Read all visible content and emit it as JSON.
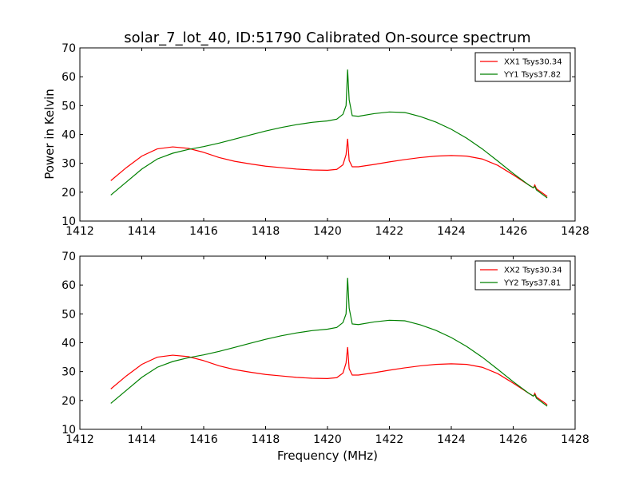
{
  "figure": {
    "title": "solar_7_lot_40, ID:51790 Calibrated On-source spectrum",
    "xlabel": "Frequency (MHz)",
    "ylabel": "Power in Kelvin"
  },
  "colors": {
    "red": "#ff0000",
    "green": "#008000"
  },
  "chart_data": [
    {
      "type": "line",
      "title": "solar_7_lot_40, ID:51790 Calibrated On-source spectrum",
      "xlabel": "",
      "ylabel": "Power in Kelvin",
      "xlim": [
        1412,
        1428
      ],
      "ylim": [
        10,
        70
      ],
      "xticks": [
        1412,
        1414,
        1416,
        1418,
        1420,
        1422,
        1424,
        1426,
        1428
      ],
      "yticks": [
        10,
        20,
        30,
        40,
        50,
        60,
        70
      ],
      "legend": "top-right",
      "grid": false,
      "series": [
        {
          "name": "XX1 Tsys30.34",
          "color": "#ff0000",
          "x": [
            1413.0,
            1413.5,
            1414.0,
            1414.5,
            1415.0,
            1415.5,
            1416.0,
            1416.5,
            1417.0,
            1417.5,
            1418.0,
            1418.5,
            1419.0,
            1419.5,
            1420.0,
            1420.3,
            1420.5,
            1420.6,
            1420.65,
            1420.7,
            1420.8,
            1421.0,
            1421.5,
            1422.0,
            1422.5,
            1423.0,
            1423.5,
            1424.0,
            1424.5,
            1425.0,
            1425.5,
            1426.0,
            1426.5,
            1426.65,
            1426.7,
            1426.75,
            1427.0,
            1427.1
          ],
          "y": [
            24.0,
            28.5,
            32.5,
            35.0,
            35.7,
            35.2,
            33.8,
            32.0,
            30.7,
            29.8,
            29.0,
            28.5,
            28.0,
            27.7,
            27.6,
            27.9,
            29.5,
            33.0,
            38.5,
            31.0,
            28.8,
            28.8,
            29.6,
            30.5,
            31.3,
            32.0,
            32.5,
            32.7,
            32.5,
            31.5,
            29.3,
            26.0,
            22.5,
            21.5,
            22.5,
            21.2,
            19.3,
            18.5
          ]
        },
        {
          "name": "YY1 Tsys37.82",
          "color": "#008000",
          "x": [
            1413.0,
            1413.5,
            1414.0,
            1414.5,
            1415.0,
            1415.5,
            1416.0,
            1416.5,
            1417.0,
            1417.5,
            1418.0,
            1418.5,
            1419.0,
            1419.5,
            1420.0,
            1420.3,
            1420.5,
            1420.6,
            1420.65,
            1420.7,
            1420.8,
            1421.0,
            1421.5,
            1422.0,
            1422.5,
            1423.0,
            1423.5,
            1424.0,
            1424.5,
            1425.0,
            1425.5,
            1426.0,
            1426.5,
            1426.65,
            1426.7,
            1426.75,
            1427.0,
            1427.1
          ],
          "y": [
            19.0,
            23.5,
            28.0,
            31.5,
            33.5,
            34.8,
            35.8,
            37.0,
            38.4,
            39.8,
            41.2,
            42.4,
            43.4,
            44.2,
            44.7,
            45.3,
            47.0,
            50.0,
            62.5,
            52.0,
            46.5,
            46.3,
            47.2,
            47.8,
            47.6,
            46.2,
            44.3,
            41.8,
            38.7,
            35.0,
            30.8,
            26.5,
            22.5,
            21.5,
            22.0,
            20.8,
            18.8,
            18.0
          ]
        }
      ]
    },
    {
      "type": "line",
      "title": "",
      "xlabel": "Frequency (MHz)",
      "ylabel": "",
      "xlim": [
        1412,
        1428
      ],
      "ylim": [
        10,
        70
      ],
      "xticks": [
        1412,
        1414,
        1416,
        1418,
        1420,
        1422,
        1424,
        1426,
        1428
      ],
      "yticks": [
        10,
        20,
        30,
        40,
        50,
        60,
        70
      ],
      "legend": "top-right",
      "grid": false,
      "series": [
        {
          "name": "XX2 Tsys30.34",
          "color": "#ff0000",
          "x": [
            1413.0,
            1413.5,
            1414.0,
            1414.5,
            1415.0,
            1415.5,
            1416.0,
            1416.5,
            1417.0,
            1417.5,
            1418.0,
            1418.5,
            1419.0,
            1419.5,
            1420.0,
            1420.3,
            1420.5,
            1420.6,
            1420.65,
            1420.7,
            1420.8,
            1421.0,
            1421.5,
            1422.0,
            1422.5,
            1423.0,
            1423.5,
            1424.0,
            1424.5,
            1425.0,
            1425.5,
            1426.0,
            1426.5,
            1426.65,
            1426.7,
            1426.75,
            1427.0,
            1427.1
          ],
          "y": [
            24.0,
            28.5,
            32.5,
            35.0,
            35.7,
            35.2,
            33.8,
            32.0,
            30.7,
            29.8,
            29.0,
            28.5,
            28.0,
            27.7,
            27.6,
            27.9,
            29.5,
            33.0,
            38.5,
            31.0,
            28.8,
            28.8,
            29.6,
            30.5,
            31.3,
            32.0,
            32.5,
            32.7,
            32.5,
            31.5,
            29.3,
            26.0,
            22.5,
            21.5,
            22.5,
            21.2,
            19.3,
            18.5
          ]
        },
        {
          "name": "YY2 Tsys37.81",
          "color": "#008000",
          "x": [
            1413.0,
            1413.5,
            1414.0,
            1414.5,
            1415.0,
            1415.5,
            1416.0,
            1416.5,
            1417.0,
            1417.5,
            1418.0,
            1418.5,
            1419.0,
            1419.5,
            1420.0,
            1420.3,
            1420.5,
            1420.6,
            1420.65,
            1420.7,
            1420.8,
            1421.0,
            1421.5,
            1422.0,
            1422.5,
            1423.0,
            1423.5,
            1424.0,
            1424.5,
            1425.0,
            1425.5,
            1426.0,
            1426.5,
            1426.65,
            1426.7,
            1426.75,
            1427.0,
            1427.1
          ],
          "y": [
            19.0,
            23.5,
            28.0,
            31.5,
            33.5,
            34.8,
            35.8,
            37.0,
            38.4,
            39.8,
            41.2,
            42.4,
            43.4,
            44.2,
            44.7,
            45.3,
            47.0,
            50.0,
            62.5,
            52.0,
            46.5,
            46.3,
            47.2,
            47.8,
            47.6,
            46.2,
            44.3,
            41.8,
            38.7,
            35.0,
            30.8,
            26.5,
            22.5,
            21.5,
            22.0,
            20.8,
            18.8,
            18.0
          ]
        }
      ]
    }
  ]
}
